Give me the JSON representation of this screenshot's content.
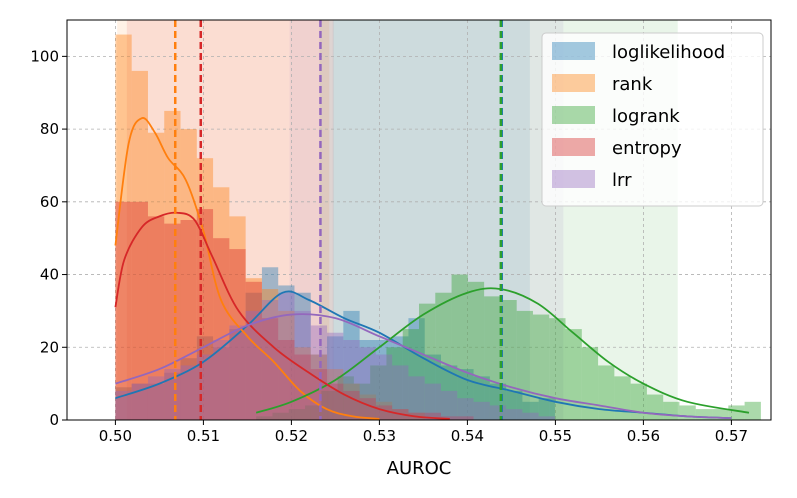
{
  "chart_data": {
    "type": "histogram",
    "title": "",
    "xlabel": "AUROC",
    "ylabel": "",
    "xlim": [
      0.4945,
      0.5745
    ],
    "ylim": [
      0,
      110
    ],
    "xticks": [
      0.5,
      0.51,
      0.52,
      0.53,
      0.54,
      0.55,
      0.56,
      0.57
    ],
    "xtick_labels": [
      "0.50",
      "0.51",
      "0.52",
      "0.53",
      "0.54",
      "0.55",
      "0.56",
      "0.57"
    ],
    "yticks": [
      0,
      20,
      40,
      60,
      80,
      100
    ],
    "ytick_labels": [
      "0",
      "20",
      "40",
      "60",
      "80",
      "100"
    ],
    "grid": true,
    "legend_position": "top-right",
    "series": [
      {
        "name": "loglikelihood",
        "color": "#1f77b4",
        "mean": 0.5439,
        "band": [
          0.5247,
          0.5471
        ],
        "bins_x0": 0.5,
        "bin_width": 0.00185,
        "counts": [
          9,
          10,
          10,
          13,
          17,
          23,
          20,
          25,
          35,
          42,
          37,
          35,
          18,
          23,
          30,
          22,
          22,
          23,
          28,
          18,
          15,
          14,
          12,
          10,
          8,
          5,
          6
        ],
        "kde_x": [
          0.5,
          0.505,
          0.51,
          0.515,
          0.519,
          0.522,
          0.526,
          0.53,
          0.535,
          0.54,
          0.545,
          0.55,
          0.555,
          0.56,
          0.565,
          0.57
        ],
        "kde_y": [
          6,
          10,
          16,
          26,
          35,
          33,
          28,
          24,
          17,
          11,
          8,
          5,
          3,
          2,
          1,
          0.5
        ]
      },
      {
        "name": "rank",
        "color": "#ff7f0e",
        "mean": 0.5068,
        "band": [
          0.5002,
          0.5243
        ],
        "bins_x0": 0.5,
        "bin_width": 0.00185,
        "counts": [
          106,
          96,
          79,
          85,
          80,
          72,
          64,
          56,
          39,
          36,
          30,
          20,
          18,
          14,
          10,
          7,
          5,
          3,
          2
        ],
        "kde_x": [
          0.5,
          0.5015,
          0.503,
          0.5045,
          0.506,
          0.508,
          0.51,
          0.512,
          0.515,
          0.518,
          0.521,
          0.524,
          0.527,
          0.53
        ],
        "kde_y": [
          48,
          76,
          83,
          79,
          72,
          66,
          52,
          33,
          23,
          16,
          8,
          3,
          1,
          0.3
        ]
      },
      {
        "name": "logrank",
        "color": "#2ca02c",
        "mean": 0.5438,
        "band": [
          0.5232,
          0.5639
        ],
        "bins_x0": 0.516,
        "bin_width": 0.00185,
        "counts": [
          1,
          2,
          3,
          4,
          8,
          12,
          10,
          15,
          20,
          25,
          32,
          35,
          40,
          38,
          34,
          33,
          30,
          29,
          28,
          25,
          20,
          15,
          12,
          10,
          7,
          5,
          4,
          3,
          3,
          4,
          5
        ],
        "kde_x": [
          0.516,
          0.52,
          0.525,
          0.53,
          0.535,
          0.54,
          0.5438,
          0.548,
          0.552,
          0.556,
          0.56,
          0.565,
          0.572
        ],
        "kde_y": [
          2,
          5,
          11,
          20,
          29,
          35,
          36,
          32,
          24,
          16,
          10,
          5,
          2
        ]
      },
      {
        "name": "entropy",
        "color": "#d62728",
        "mean": 0.5097,
        "band": [
          0.5013,
          0.5248
        ],
        "bins_x0": 0.5,
        "bin_width": 0.00185,
        "counts": [
          60,
          60,
          56,
          54,
          55,
          58,
          50,
          47,
          38,
          28,
          22,
          18,
          14,
          10,
          8,
          6,
          4,
          3,
          2,
          2,
          1,
          1
        ],
        "kde_x": [
          0.5,
          0.501,
          0.503,
          0.505,
          0.507,
          0.509,
          0.511,
          0.514,
          0.518,
          0.522,
          0.526,
          0.53,
          0.534,
          0.538
        ],
        "kde_y": [
          31,
          44,
          53,
          56,
          57,
          55,
          45,
          30,
          20,
          13,
          7,
          3,
          1,
          0.3
        ]
      },
      {
        "name": "lrr",
        "color": "#9467bd",
        "mean": 0.5233,
        "band": [
          0.5198,
          0.5509
        ],
        "bins_x0": 0.5,
        "bin_width": 0.00185,
        "counts": [
          8,
          10,
          12,
          14,
          15,
          18,
          22,
          26,
          30,
          33,
          35,
          30,
          26,
          24,
          22,
          20,
          18,
          15,
          12,
          10,
          8,
          6,
          5,
          4,
          3,
          2,
          1
        ],
        "kde_x": [
          0.5,
          0.505,
          0.51,
          0.515,
          0.52,
          0.525,
          0.53,
          0.535,
          0.54,
          0.545,
          0.55,
          0.555,
          0.56,
          0.565,
          0.57
        ],
        "kde_y": [
          10,
          14,
          20,
          26,
          29,
          28,
          23,
          18,
          13,
          9,
          6,
          4,
          2,
          1,
          0.5
        ]
      }
    ]
  }
}
